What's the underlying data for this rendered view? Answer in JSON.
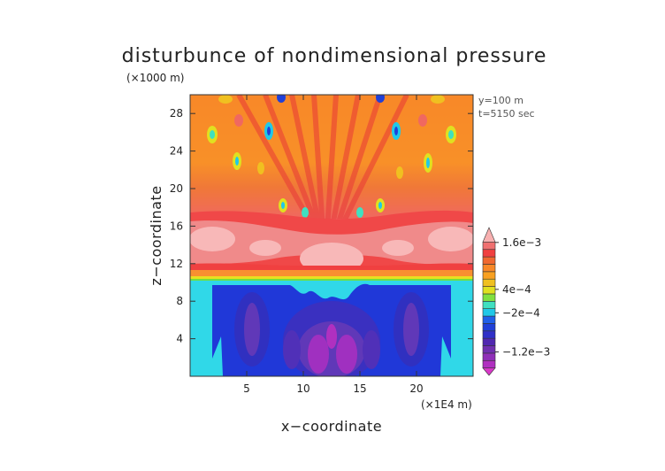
{
  "chart_data": {
    "type": "heatmap",
    "title": "disturbunce of nondimensional pressure",
    "z_unit": "(×1000 m)",
    "x_unit": "(×1E4 m)",
    "xlabel": "x−coordinate",
    "ylabel": "z−coordinate",
    "info": [
      "y=100 m",
      "t=5150 sec"
    ],
    "x_ticks": [
      5,
      10,
      15,
      20
    ],
    "y_ticks": [
      4,
      8,
      12,
      16,
      20,
      24,
      28
    ],
    "xlim": [
      0,
      25
    ],
    "ylim": [
      0,
      30
    ],
    "colorbar": {
      "labels": [
        {
          "text": "1.6e−3",
          "value": 0.0016
        },
        {
          "text": "4e−4",
          "value": 0.0004
        },
        {
          "text": "−2e−4",
          "value": -0.0002
        },
        {
          "text": "−1.2e−3",
          "value": -0.0012
        }
      ],
      "levels_low_to_high": [
        -0.0018,
        -0.0016,
        -0.0014,
        -0.0012,
        -0.001,
        -0.0008,
        -0.0006,
        -0.0004,
        -0.0002,
        0,
        0.0002,
        0.0004,
        0.0006,
        0.0008,
        0.001,
        0.0012,
        0.0014,
        0.0016,
        0.0018
      ],
      "colors_low_to_high": [
        "#d838c8",
        "#b030c0",
        "#9030b8",
        "#7030b0",
        "#5028b0",
        "#3030c8",
        "#2040d8",
        "#2060e8",
        "#20c8e8",
        "#40e0c0",
        "#80e040",
        "#e0e020",
        "#f0c020",
        "#f8a020",
        "#f88828",
        "#f06830",
        "#f04040",
        "#f07070",
        "#f8b0b0"
      ]
    },
    "regions": [
      {
        "description": "lower layer (z 0–10)",
        "typical_value": -0.0008
      },
      {
        "description": "transition band (z ~10–11)",
        "typical_value": 0.0002
      },
      {
        "description": "pink layer (z ~11–16)",
        "typical_value": 0.0016
      },
      {
        "description": "upper layer (z 16–30)",
        "typical_value": 0.0008
      }
    ]
  }
}
